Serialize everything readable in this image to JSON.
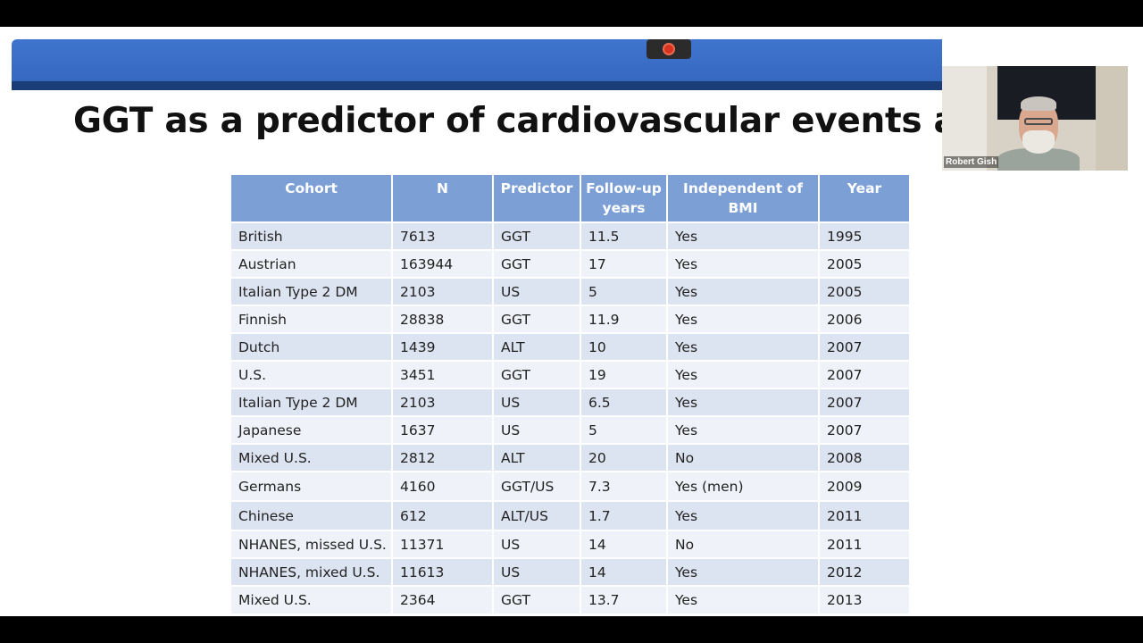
{
  "slide": {
    "title": "GGT as a predictor of cardiovascular events and m"
  },
  "recording_indicator": {
    "icon": "record-icon",
    "color": "#d9331f"
  },
  "table": {
    "headers": [
      "Cohort",
      "N",
      "Predictor",
      "Follow-up years",
      "Independent of BMI",
      "Year"
    ],
    "rows": [
      [
        "British",
        "7613",
        "GGT",
        "11.5",
        "Yes",
        "1995"
      ],
      [
        "Austrian",
        "163944",
        "GGT",
        "17",
        "Yes",
        "2005"
      ],
      [
        "Italian Type 2 DM",
        "2103",
        "US",
        "5",
        "Yes",
        "2005"
      ],
      [
        "Finnish",
        "28838",
        "GGT",
        "11.9",
        "Yes",
        "2006"
      ],
      [
        "Dutch",
        "1439",
        "ALT",
        "10",
        "Yes",
        "2007"
      ],
      [
        "U.S.",
        "3451",
        "GGT",
        "19",
        "Yes",
        "2007"
      ],
      [
        "Italian Type 2 DM",
        "2103",
        "US",
        "6.5",
        "Yes",
        "2007"
      ],
      [
        "Japanese",
        "1637",
        "US",
        "5",
        "Yes",
        "2007"
      ],
      [
        "Mixed U.S.",
        "2812",
        "ALT",
        "20",
        "No",
        "2008"
      ],
      [
        "Germans",
        "4160",
        "GGT/US",
        "7.3",
        "Yes (men)",
        "2009"
      ],
      [
        "Chinese",
        "612",
        "ALT/US",
        "1.7",
        "Yes",
        "2011"
      ],
      [
        "NHANES, missed U.S.",
        "11371",
        "US",
        "14",
        "No",
        "2011"
      ],
      [
        "NHANES, mixed U.S.",
        "11613",
        "US",
        "14",
        "Yes",
        "2012"
      ],
      [
        "Mixed U.S.",
        "2364",
        "GGT",
        "13.7",
        "Yes",
        "2013"
      ]
    ]
  },
  "video": {
    "participant_name": "Robert Gish"
  },
  "colors": {
    "header_bg": "#7c9fd6",
    "row_odd": "#dde4f1",
    "row_even": "#eff2f8",
    "band": "#3f75cf"
  }
}
